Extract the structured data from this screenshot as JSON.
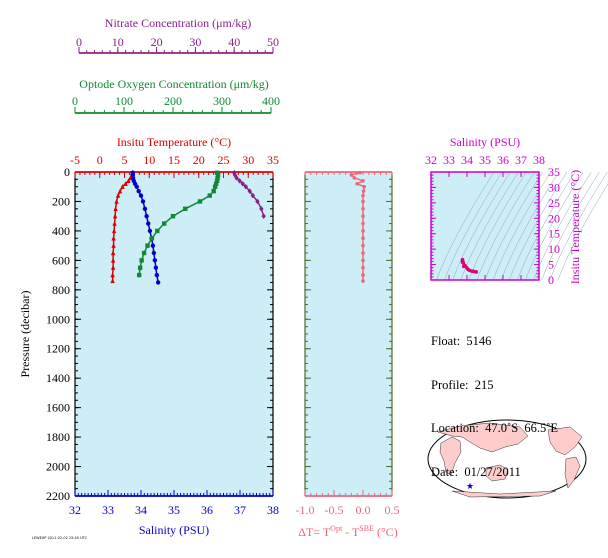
{
  "chart_data": [
    {
      "type": "scatter",
      "panel": "main-profile",
      "ylabel": "Pressure (decibar)",
      "ylim": [
        2200,
        0
      ],
      "yticks": [
        "0",
        "200",
        "400",
        "600",
        "800",
        "1000",
        "1200",
        "1400",
        "1600",
        "1800",
        "2000",
        "2200"
      ],
      "axes": {
        "temperature": {
          "title": "Insitu Temperature (°C)",
          "range": [
            -5,
            35
          ],
          "ticks": [
            "-5",
            "0",
            "5",
            "10",
            "15",
            "20",
            "25",
            "30",
            "35"
          ],
          "color": "#dd0000"
        },
        "salinity": {
          "title": "Salinity (PSU)",
          "range": [
            32,
            38
          ],
          "ticks": [
            "32",
            "33",
            "34",
            "35",
            "36",
            "37",
            "38"
          ],
          "color": "#0000cc"
        },
        "oxygen": {
          "title": "Optode Oxygen Concentration (μm/kg)",
          "range": [
            0,
            400
          ],
          "ticks": [
            "0",
            "100",
            "200",
            "300",
            "400"
          ],
          "color": "#118833"
        },
        "nitrate": {
          "title": "Nitrate Concentration (μm/kg)",
          "range": [
            0,
            50
          ],
          "ticks": [
            "0",
            "10",
            "20",
            "30",
            "40",
            "50"
          ],
          "color": "#882288"
        }
      },
      "series": [
        {
          "key": "temperature",
          "color": "#dd0000",
          "marker": "triangle",
          "points": [
            [
              6.6,
              5
            ],
            [
              6.5,
              20
            ],
            [
              6.2,
              40
            ],
            [
              5.8,
              60
            ],
            [
              5.2,
              80
            ],
            [
              4.6,
              100
            ],
            [
              4.1,
              130
            ],
            [
              3.7,
              160
            ],
            [
              3.4,
              200
            ],
            [
              3.2,
              250
            ],
            [
              3.1,
              300
            ],
            [
              3.0,
              350
            ],
            [
              2.9,
              400
            ],
            [
              2.8,
              450
            ],
            [
              2.8,
              500
            ],
            [
              2.7,
              550
            ],
            [
              2.7,
              600
            ],
            [
              2.7,
              650
            ],
            [
              2.6,
              700
            ],
            [
              2.6,
              740
            ]
          ]
        },
        {
          "key": "salinity",
          "color": "#0000cc",
          "marker": "circle",
          "points": [
            [
              33.75,
              5
            ],
            [
              33.75,
              20
            ],
            [
              33.76,
              40
            ],
            [
              33.78,
              60
            ],
            [
              33.82,
              80
            ],
            [
              33.87,
              100
            ],
            [
              33.93,
              130
            ],
            [
              34.0,
              160
            ],
            [
              34.06,
              200
            ],
            [
              34.12,
              250
            ],
            [
              34.17,
              300
            ],
            [
              34.22,
              350
            ],
            [
              34.27,
              400
            ],
            [
              34.32,
              450
            ],
            [
              34.36,
              500
            ],
            [
              34.39,
              550
            ],
            [
              34.42,
              600
            ],
            [
              34.45,
              650
            ],
            [
              34.48,
              700
            ],
            [
              34.52,
              750
            ]
          ]
        },
        {
          "key": "oxygen",
          "color": "#118833",
          "marker": "square",
          "points": [
            [
              290,
              5
            ],
            [
              292,
              20
            ],
            [
              291,
              40
            ],
            [
              290,
              60
            ],
            [
              288,
              80
            ],
            [
              286,
              100
            ],
            [
              283,
              130
            ],
            [
              275,
              160
            ],
            [
              255,
              200
            ],
            [
              225,
              250
            ],
            [
              200,
              300
            ],
            [
              182,
              350
            ],
            [
              168,
              400
            ],
            [
              157,
              450
            ],
            [
              148,
              500
            ],
            [
              141,
              550
            ],
            [
              136,
              600
            ],
            [
              133,
              650
            ],
            [
              131,
              700
            ]
          ]
        },
        {
          "key": "nitrate",
          "color": "#882288",
          "marker": "diamond",
          "points": [
            [
              40.0,
              5
            ],
            [
              40.2,
              20
            ],
            [
              40.6,
              40
            ],
            [
              41.4,
              60
            ],
            [
              42.2,
              80
            ],
            [
              43.0,
              100
            ],
            [
              44.0,
              130
            ],
            [
              44.8,
              160
            ],
            [
              46.0,
              200
            ],
            [
              47.0,
              250
            ],
            [
              47.6,
              300
            ]
          ]
        }
      ]
    },
    {
      "type": "scatter",
      "panel": "delta-t",
      "xlabel": "ΔT= T",
      "xlabel_sup1": "Opt",
      "xlabel_mid": " - T",
      "xlabel_sup2": "SBE",
      "xlabel_end": " (°C)",
      "xlim": [
        -1.0,
        0.5
      ],
      "xticks": [
        "-1.0",
        "-0.5",
        "0.0",
        "0.5"
      ],
      "ylim": [
        2200,
        0
      ],
      "color": "#ee6677",
      "points": [
        [
          -0.05,
          5
        ],
        [
          -0.2,
          20
        ],
        [
          -0.15,
          40
        ],
        [
          0.0,
          60
        ],
        [
          -0.1,
          80
        ],
        [
          0.02,
          100
        ],
        [
          0.01,
          130
        ],
        [
          0.0,
          160
        ],
        [
          0.0,
          200
        ],
        [
          0.0,
          250
        ],
        [
          0.0,
          300
        ],
        [
          0.0,
          350
        ],
        [
          0.0,
          400
        ],
        [
          0.0,
          450
        ],
        [
          0.0,
          500
        ],
        [
          0.0,
          550
        ],
        [
          0.0,
          600
        ],
        [
          0.0,
          650
        ],
        [
          0.0,
          700
        ],
        [
          0.0,
          740
        ]
      ]
    },
    {
      "type": "scatter",
      "panel": "ts-diagram",
      "xlabel": "Salinity (PSU)",
      "xlim": [
        32,
        38
      ],
      "xticks": [
        "32",
        "33",
        "34",
        "35",
        "36",
        "37",
        "38"
      ],
      "ylabel": "Insitu Temperature (°C)",
      "ylim": [
        0,
        35
      ],
      "yticks": [
        "0",
        "5",
        "10",
        "15",
        "20",
        "25",
        "30",
        "35"
      ],
      "color": "#dd0077",
      "points": [
        [
          33.75,
          6.6
        ],
        [
          33.76,
          6.2
        ],
        [
          33.8,
          5.5
        ],
        [
          33.9,
          4.6
        ],
        [
          34.0,
          3.9
        ],
        [
          34.06,
          3.4
        ],
        [
          34.15,
          3.1
        ],
        [
          34.25,
          2.9
        ],
        [
          34.35,
          2.8
        ],
        [
          34.45,
          2.7
        ],
        [
          34.52,
          2.6
        ],
        [
          33.75,
          5.8
        ],
        [
          33.82,
          4.4
        ]
      ]
    }
  ],
  "info": {
    "float": "Float:  5146",
    "profile": "Profile:  215",
    "location": "Location:  47.0˚S  66.5˚E",
    "date": "Date:  01/27/2011"
  },
  "map": {
    "marker": {
      "lon": 66.5,
      "lat": -47.0,
      "color": "#0000ee"
    },
    "land_color": "#ffcccc",
    "ocean_color": "#ffffff"
  },
  "stamp": "LEWEXP 2011-02-02 15:45 UTC"
}
